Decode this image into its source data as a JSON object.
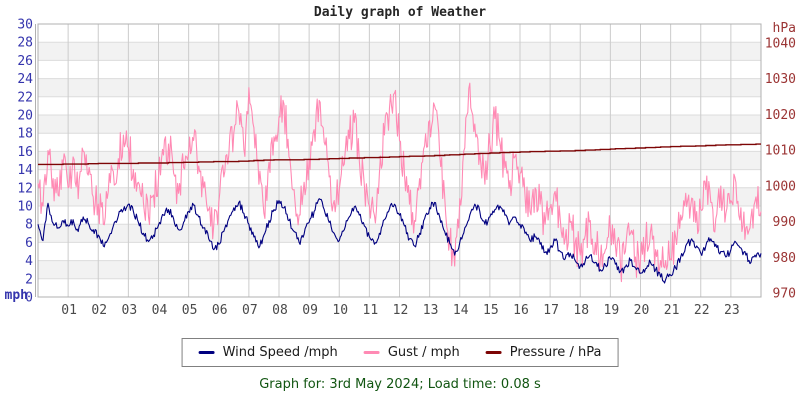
{
  "title": "Daily graph of Weather",
  "footer": "Graph for: 3rd May 2024; Load time: 0.08 s",
  "legend": [
    {
      "label": "Wind Speed /mph",
      "color": "#000080"
    },
    {
      "label": "Gust / mph",
      "color": "#ff8ab4"
    },
    {
      "label": "Pressure / hPa",
      "color": "#7d0505"
    }
  ],
  "colors": {
    "title": "#262626",
    "footer_text": "#115511",
    "left_axis_labels": "#3434ad",
    "right_axis_labels": "#9b3434",
    "x_axis_labels": "#4a4a4a"
  },
  "chart_data": {
    "type": "line",
    "title": "Daily graph of Weather",
    "x_unit": "hour of day",
    "x_range_hours": [
      0,
      24
    ],
    "x_ticks": [
      "01",
      "02",
      "03",
      "04",
      "05",
      "06",
      "07",
      "08",
      "09",
      "10",
      "11",
      "12",
      "13",
      "14",
      "15",
      "16",
      "17",
      "18",
      "19",
      "20",
      "21",
      "22",
      "23"
    ],
    "grid": true,
    "legend_position": "bottom",
    "left_axis": {
      "label": "mph",
      "range": [
        0,
        30
      ],
      "tick_step": 2,
      "color": "#3434ad"
    },
    "right_axis": {
      "label": "hPa",
      "range": [
        970,
        1040
      ],
      "tick_step": 10,
      "color": "#9b3434"
    },
    "style": {
      "band_fill": "#f2f2f2",
      "hgrid": "#dcdcdc",
      "vgrid": "#cccccc",
      "border": "#b0b0b0"
    },
    "series": [
      {
        "name": "Wind Speed /mph",
        "axis": "left",
        "color": "#000080",
        "sample_minutes": 10,
        "noise_amplitude": 0.45,
        "values": [
          8.0,
          6.2,
          10.3,
          8.1,
          7.6,
          8.4,
          7.8,
          8.5,
          7.2,
          8.8,
          8.1,
          7.4,
          6.8,
          5.6,
          6.4,
          7.8,
          8.9,
          9.6,
          10.2,
          9.4,
          8.2,
          7.0,
          6.1,
          6.8,
          7.9,
          9.0,
          9.6,
          8.6,
          7.4,
          8.2,
          9.4,
          10.1,
          8.8,
          7.6,
          6.4,
          5.2,
          5.8,
          7.2,
          8.6,
          9.8,
          10.4,
          9.2,
          8.0,
          6.6,
          5.4,
          6.8,
          8.4,
          9.6,
          10.6,
          9.8,
          8.4,
          7.2,
          6.0,
          6.9,
          8.2,
          9.4,
          10.8,
          9.6,
          8.2,
          7.0,
          6.2,
          7.4,
          8.8,
          9.9,
          9.0,
          7.8,
          6.6,
          5.8,
          7.0,
          8.5,
          9.7,
          10.2,
          9.0,
          7.8,
          6.4,
          5.6,
          7.0,
          8.6,
          9.8,
          10.4,
          8.8,
          7.2,
          5.9,
          4.6,
          6.0,
          7.6,
          9.0,
          10.2,
          9.4,
          8.0,
          8.8,
          9.6,
          10.0,
          9.0,
          8.2,
          8.8,
          8.0,
          7.0,
          6.2,
          6.6,
          5.8,
          4.9,
          5.4,
          6.2,
          5.0,
          4.2,
          4.8,
          4.0,
          3.4,
          4.0,
          4.6,
          3.8,
          3.0,
          3.5,
          4.2,
          3.6,
          2.8,
          3.3,
          4.0,
          3.2,
          2.6,
          3.1,
          3.8,
          3.0,
          2.2,
          1.9,
          2.4,
          3.2,
          4.4,
          5.6,
          6.2,
          5.4,
          4.8,
          5.6,
          6.4,
          5.8,
          5.0,
          4.4,
          5.2,
          6.0,
          5.4,
          4.6,
          3.8,
          4.4,
          4.8
        ]
      },
      {
        "name": "Gust / mph",
        "axis": "left",
        "color": "#ff8ab4",
        "sample_minutes": 10,
        "noise_amplitude": 2.2,
        "values": [
          12.5,
          10.0,
          16.1,
          13.0,
          11.2,
          14.6,
          12.0,
          15.4,
          10.8,
          16.0,
          13.4,
          11.0,
          10.2,
          8.0,
          11.6,
          13.8,
          15.2,
          17.8,
          16.4,
          14.0,
          12.6,
          10.4,
          8.8,
          11.2,
          13.0,
          15.6,
          16.8,
          13.6,
          11.4,
          14.2,
          15.8,
          17.2,
          14.4,
          12.0,
          9.6,
          7.8,
          10.4,
          13.2,
          15.6,
          18.0,
          20.4,
          16.2,
          23.0,
          18.6,
          12.4,
          9.2,
          14.8,
          17.6,
          19.8,
          21.2,
          15.4,
          11.8,
          9.0,
          12.6,
          15.2,
          18.4,
          21.6,
          17.0,
          13.2,
          10.6,
          11.8,
          14.6,
          17.4,
          19.2,
          15.0,
          12.2,
          10.0,
          9.0,
          13.6,
          17.8,
          20.8,
          22.4,
          17.2,
          13.4,
          10.2,
          8.4,
          13.0,
          16.6,
          19.4,
          21.0,
          15.6,
          11.0,
          6.2,
          3.4,
          10.8,
          16.4,
          23.5,
          19.0,
          15.8,
          12.4,
          16.8,
          19.6,
          17.0,
          14.2,
          12.8,
          15.4,
          13.6,
          11.2,
          9.4,
          12.0,
          10.2,
          8.0,
          9.8,
          11.6,
          8.6,
          6.4,
          8.2,
          6.0,
          4.6,
          6.8,
          8.4,
          6.0,
          4.0,
          5.2,
          7.4,
          5.6,
          3.6,
          5.0,
          7.0,
          4.4,
          4.0,
          5.8,
          7.2,
          5.2,
          4.0,
          4.0,
          4.2,
          6.6,
          9.0,
          11.4,
          10.0,
          8.2,
          9.6,
          11.8,
          10.4,
          8.6,
          12.2,
          9.2,
          10.6,
          12.6,
          9.8,
          7.6,
          8.8,
          11.0,
          9.4
        ]
      },
      {
        "name": "Pressure / hPa",
        "axis": "right",
        "color": "#7d0505",
        "sample_minutes": 30,
        "noise_amplitude": 0,
        "values": [
          1006.0,
          1006.0,
          1006.1,
          1006.1,
          1006.3,
          1006.3,
          1006.3,
          1006.4,
          1006.4,
          1006.5,
          1006.6,
          1006.7,
          1006.8,
          1006.8,
          1007.0,
          1007.2,
          1007.3,
          1007.3,
          1007.4,
          1007.5,
          1007.7,
          1007.8,
          1007.9,
          1008.0,
          1008.2,
          1008.3,
          1008.4,
          1008.6,
          1008.8,
          1009.0,
          1009.2,
          1009.3,
          1009.5,
          1009.6,
          1009.7,
          1009.8,
          1009.9,
          1010.1,
          1010.3,
          1010.5,
          1010.6,
          1010.8,
          1011.0,
          1011.1,
          1011.2,
          1011.4,
          1011.5,
          1011.6,
          1011.7
        ]
      }
    ]
  }
}
